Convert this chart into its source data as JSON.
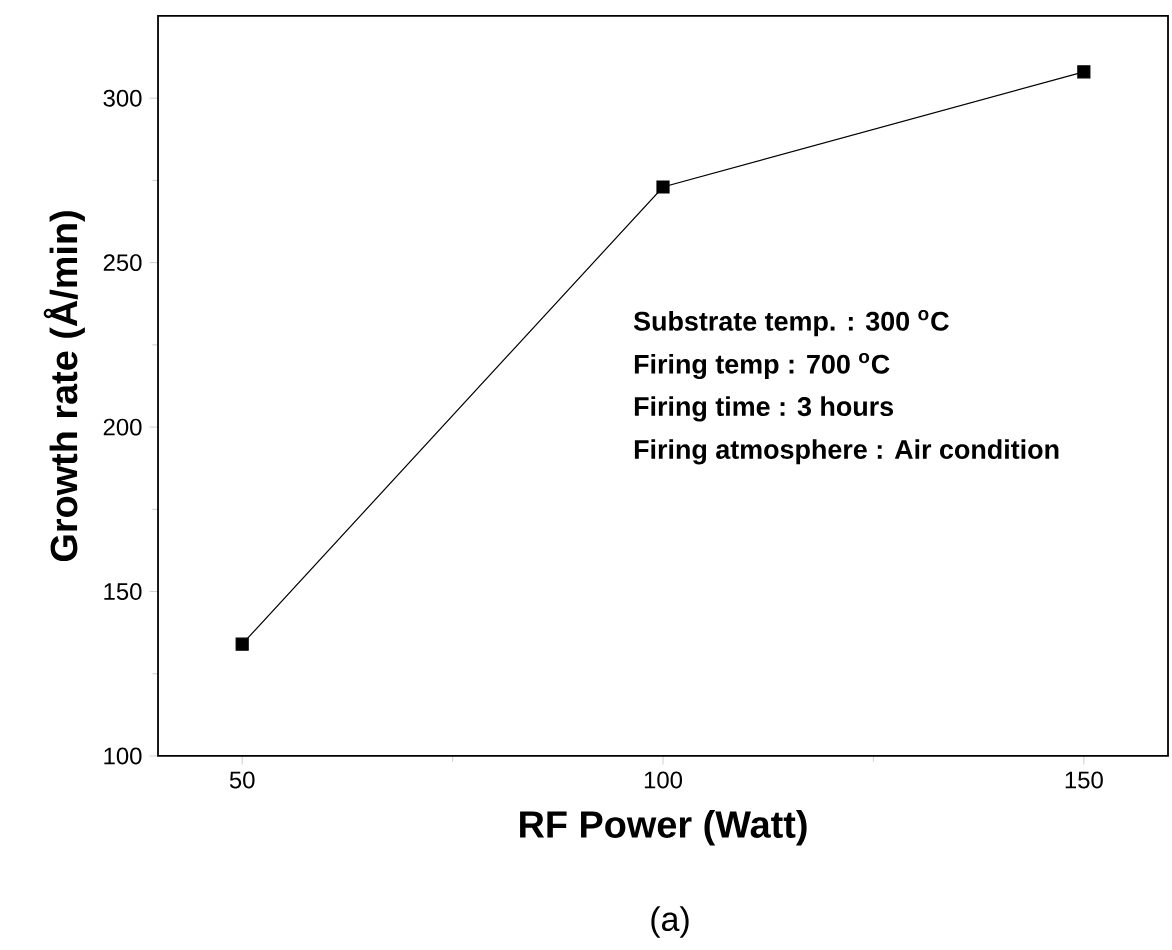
{
  "chart_data": {
    "type": "line",
    "xlabel": "RF Power (Watt)",
    "ylabel": "Growth rate (Å/min)",
    "x": [
      50,
      100,
      150
    ],
    "series": [
      {
        "color": "#000000",
        "values": [
          134,
          273,
          308
        ]
      }
    ],
    "xlim": [
      40,
      160
    ],
    "ylim": [
      100,
      325
    ],
    "xticks": [
      50,
      100,
      150
    ],
    "yticks": [
      100,
      150,
      200,
      250,
      300
    ],
    "marker": "square",
    "line_style": "solid",
    "grid": false,
    "legend": false,
    "annotations": [
      "Substrate temp. : 300 $^{o}$C",
      "Firing temp : 700 $^{o}$C",
      "Firing time : 3 hours",
      "Firing atmosphere : Air condition",
      "(a)"
    ]
  }
}
